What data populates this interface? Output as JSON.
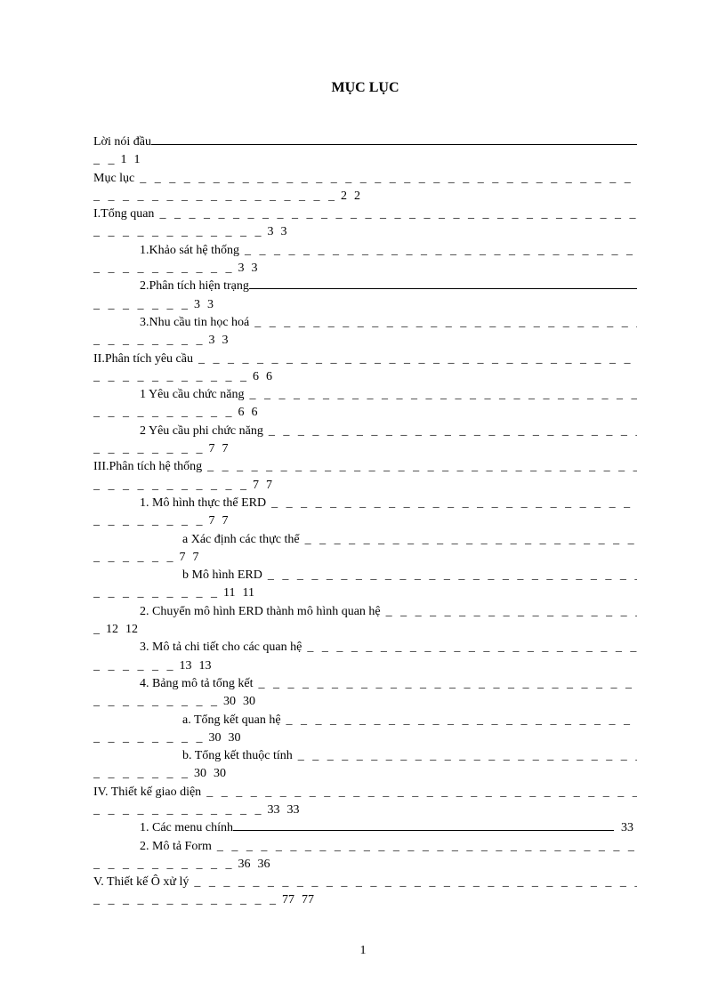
{
  "title": "MỤC LỤC",
  "page_number": "1",
  "leader": "_ _ _ _ _ _ _ _ _ _ _ _ _ _ _ _ _ _ _ _ _ _ _ _ _ _ _ _ _ _ _ _ _ _ _ _ _ _ _ _ _ _ _ _ _ _ _ _ _ _ _ _ _ _ _ _ _ _ _ _ _ _ _ _ _ _ _ _ _ _",
  "items": [
    {
      "label": "Lời nói đầu",
      "indent": 0,
      "pg1": "1",
      "pg2": "1",
      "cont": "_ _",
      "solid": true
    },
    {
      "label": "Mục lục",
      "indent": 0,
      "pg1": "2",
      "pg2": "2",
      "cont": "_ _ _ _ _ _ _ _ _ _ _ _ _ _ _ _ _"
    },
    {
      "label": "I.Tổng quan",
      "indent": 0,
      "pg1": "3",
      "pg2": "3",
      "cont": "_ _ _ _ _ _ _ _ _ _ _ _"
    },
    {
      "label": "1.Khảo sát hệ thống",
      "indent": 1,
      "pg1": "3",
      "pg2": "3",
      "cont": "_ _ _ _ _ _ _ _ _ _"
    },
    {
      "label": "2.Phân tích hiện trạng",
      "indent": 1,
      "pg1": "3",
      "pg2": "3",
      "cont": "_ _ _ _ _ _ _",
      "solid": true
    },
    {
      "label": "3.Nhu cầu tin học hoá",
      "indent": 1,
      "pg1": "3",
      "pg2": "3",
      "cont": "_ _ _ _ _ _ _ _"
    },
    {
      "label": "II.Phân tích yêu cầu",
      "indent": 0,
      "pg1": "6",
      "pg2": "6",
      "cont": "_ _ _ _ _ _ _ _ _ _ _"
    },
    {
      "label": "1 Yêu cầu chức năng",
      "indent": 1,
      "pg1": "6",
      "pg2": "6",
      "cont": "_ _ _ _ _ _ _ _ _ _"
    },
    {
      "label": "2 Yêu cầu phi chức năng",
      "indent": 1,
      "pg1": "7",
      "pg2": "7",
      "cont": "_ _ _ _ _ _ _ _"
    },
    {
      "label": "III.Phân tích hệ thống",
      "indent": 0,
      "pg1": "7",
      "pg2": "7",
      "cont": "_ _ _ _ _ _ _ _ _ _ _"
    },
    {
      "label": "1. Mô hình thực thể ERD",
      "indent": 1,
      "pg1": "7",
      "pg2": "7",
      "cont": "_ _ _ _ _ _ _ _"
    },
    {
      "label": "a Xác định  các thực thể",
      "indent": 2,
      "pg1": "7",
      "pg2": "7",
      "cont": "_ _ _ _ _ _"
    },
    {
      "label": "b Mô hình  ERD",
      "indent": 2,
      "pg1": "11",
      "pg2": "11",
      "cont": "_ _ _ _ _ _ _ _ _"
    },
    {
      "label": "2. Chuyển mô hình  ERD thành  mô hình quan hệ",
      "indent": 1,
      "pg1": "12",
      "pg2": "12",
      "cont": "_"
    },
    {
      "label": "3. Mô tả chi tiết cho các quan hệ",
      "indent": 1,
      "pg1": "13",
      "pg2": "13",
      "cont": "_ _ _ _ _ _"
    },
    {
      "label": "4. Bảng mô tả tổng kết",
      "indent": 1,
      "pg1": "30",
      "pg2": "30",
      "cont": "_ _ _ _ _ _ _ _ _"
    },
    {
      "label": "a. Tổng kết quan hệ",
      "indent": 2,
      "pg1": "30",
      "pg2": "30",
      "cont": "_ _ _ _ _ _ _ _"
    },
    {
      "label": "b. Tổng kết thuộc tính",
      "indent": 2,
      "pg1": "30",
      "pg2": "30",
      "cont": "_ _ _ _ _ _ _"
    },
    {
      "label": "IV. Thiết kế giao diện",
      "indent": 0,
      "pg1": "33",
      "pg2": "33",
      "cont": "_ _ _ _ _ _ _ _ _ _ _ _"
    },
    {
      "label": "1. Các menu chính",
      "indent": 1,
      "pg_inline": "33",
      "solid": true
    },
    {
      "label": "2. Mô tả Form",
      "indent": 1,
      "pg1": "36",
      "pg2": "36",
      "cont": "_ _ _ _ _ _ _ _ _ _"
    },
    {
      "label": "V. Thiết kế Ô xử lý",
      "indent": 0,
      "pg1": "77",
      "pg2": "77",
      "cont": "_ _ _ _ _ _ _ _ _ _ _ _ _"
    }
  ]
}
